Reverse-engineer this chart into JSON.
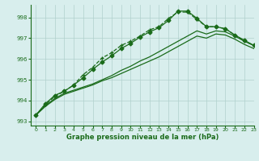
{
  "xlabel": "Graphe pression niveau de la mer (hPa)",
  "ylim": [
    992.8,
    998.6
  ],
  "xlim": [
    -0.5,
    23
  ],
  "yticks": [
    993,
    994,
    995,
    996,
    997,
    998
  ],
  "xticks": [
    0,
    1,
    2,
    3,
    4,
    5,
    6,
    7,
    8,
    9,
    10,
    11,
    12,
    13,
    14,
    15,
    16,
    17,
    18,
    19,
    20,
    21,
    22,
    23
  ],
  "bg_color": "#d8eeed",
  "grid_color": "#b0d0cc",
  "line_color": "#1a6b1a",
  "series": [
    {
      "x": [
        0,
        1,
        2,
        3,
        4,
        5,
        6,
        7,
        8,
        9,
        10,
        11,
        12,
        13,
        14,
        15,
        16,
        17,
        18,
        19,
        20,
        21,
        22,
        23
      ],
      "y": [
        993.3,
        993.8,
        994.2,
        994.45,
        994.75,
        995.25,
        995.6,
        996.05,
        996.3,
        996.65,
        996.85,
        997.1,
        997.4,
        997.55,
        997.95,
        998.25,
        998.25,
        997.9,
        997.55,
        997.55,
        997.45,
        997.15,
        996.85,
        996.65
      ],
      "marker": "+",
      "linestyle": "--",
      "linewidth": 0.9,
      "markersize": 3.5,
      "zorder": 5
    },
    {
      "x": [
        0,
        1,
        2,
        3,
        4,
        5,
        6,
        7,
        8,
        9,
        10,
        11,
        12,
        13,
        14,
        15,
        16,
        17,
        18,
        19,
        20,
        21,
        22,
        23
      ],
      "y": [
        993.3,
        993.85,
        994.25,
        994.45,
        994.75,
        995.1,
        995.5,
        995.85,
        996.15,
        996.5,
        996.75,
        997.05,
        997.3,
        997.5,
        997.85,
        998.3,
        998.3,
        997.95,
        997.55,
        997.55,
        997.45,
        997.15,
        996.9,
        996.65
      ],
      "marker": "D",
      "linestyle": "-",
      "linewidth": 0.9,
      "markersize": 2.5,
      "zorder": 5
    },
    {
      "x": [
        0,
        1,
        2,
        3,
        4,
        5,
        6,
        7,
        8,
        9,
        10,
        11,
        12,
        13,
        14,
        15,
        16,
        17,
        18,
        19,
        20,
        21,
        22,
        23
      ],
      "y": [
        993.3,
        993.75,
        994.1,
        994.35,
        994.5,
        994.65,
        994.8,
        995.0,
        995.2,
        995.45,
        995.65,
        995.9,
        996.1,
        996.35,
        996.6,
        996.85,
        997.1,
        997.35,
        997.2,
        997.35,
        997.3,
        997.1,
        996.85,
        996.65
      ],
      "marker": null,
      "linestyle": "-",
      "linewidth": 0.9,
      "markersize": 0,
      "zorder": 3
    },
    {
      "x": [
        0,
        1,
        2,
        3,
        4,
        5,
        6,
        7,
        8,
        9,
        10,
        11,
        12,
        13,
        14,
        15,
        16,
        17,
        18,
        19,
        20,
        21,
        22,
        23
      ],
      "y": [
        993.3,
        993.72,
        994.05,
        994.3,
        994.45,
        994.6,
        994.75,
        994.95,
        995.1,
        995.3,
        995.5,
        995.7,
        995.9,
        996.1,
        996.35,
        996.6,
        996.85,
        997.1,
        997.0,
        997.2,
        997.15,
        996.95,
        996.7,
        996.5
      ],
      "marker": null,
      "linestyle": "-",
      "linewidth": 0.9,
      "markersize": 0,
      "zorder": 3
    }
  ]
}
